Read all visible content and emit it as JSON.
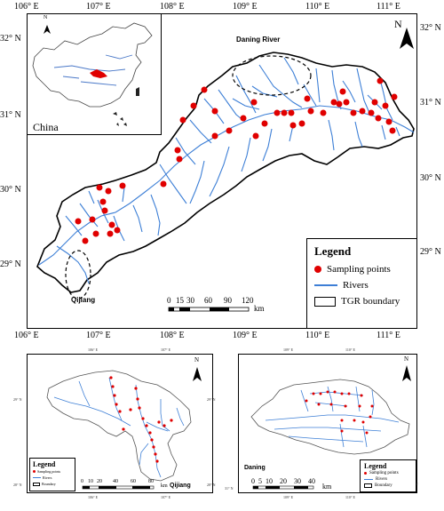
{
  "main_map": {
    "top_ticks": [
      "106° E",
      "107° E",
      "108° E",
      "109° E",
      "110° E",
      "111° E"
    ],
    "bottom_ticks": [
      "106° E",
      "107° E",
      "108° E",
      "109° E",
      "110° E",
      "111° E"
    ],
    "left_ticks": [
      "32° N",
      "31° N",
      "30° N",
      "29° N"
    ],
    "right_ticks": [
      "32° N",
      "31° N",
      "30° N",
      "29° N"
    ],
    "north_label": "N",
    "inset_label": "China",
    "inset_north": "N",
    "annotation_daning": "Daning River",
    "annotation_qijiang": "Qijiang",
    "legend": {
      "title": "Legend",
      "items": [
        "Sampling points",
        "Rivers",
        "TGR boundary"
      ]
    },
    "scalebar": {
      "labels": [
        "0",
        "15",
        "30",
        "60",
        "90",
        "120"
      ],
      "unit": "km"
    }
  },
  "qijiang_map": {
    "north_label": "N",
    "top_ticks": [
      "106° E",
      "107° E"
    ],
    "side_ticks": [
      "29° N",
      "29° N",
      "28° N",
      "28° N"
    ],
    "bottom_ticks": [
      "106° E",
      "107° E"
    ],
    "name_label": "Qijiang",
    "legend": {
      "title": "Legend",
      "items": [
        "Sampling points",
        "Rivers",
        "Boundary"
      ]
    },
    "scalebar": {
      "labels": [
        "0",
        "10",
        "20",
        "40",
        "60",
        "80"
      ],
      "unit": "km"
    }
  },
  "daning_map": {
    "north_label": "N",
    "top_ticks": [
      "109° E",
      "110° E"
    ],
    "side_ticks": [
      "31° N",
      "31° N"
    ],
    "bottom_ticks": [
      "109° E",
      "110° E"
    ],
    "name_label": "Daning",
    "legend": {
      "title": "Legend",
      "items": [
        "Sampling points",
        "Rivers",
        "Boundary"
      ]
    },
    "scalebar": {
      "labels": [
        "0",
        "5",
        "10",
        "20",
        "30",
        "40"
      ],
      "unit": "km"
    }
  },
  "colors": {
    "sampling_point": "#e00000",
    "river": "#3d7fd6",
    "boundary": "#000000",
    "china_inset_river": "#4a78c8"
  }
}
